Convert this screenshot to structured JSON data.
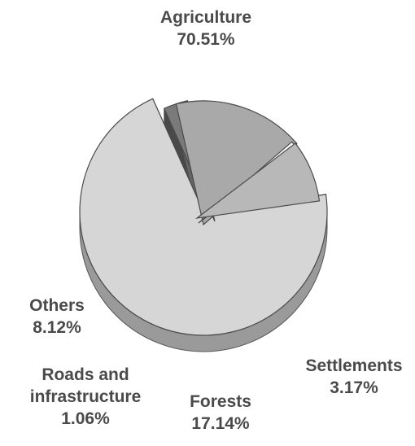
{
  "chart_data": {
    "type": "pie",
    "style": "3d-exploded",
    "categories": [
      "Agriculture",
      "Settlements",
      "Forests",
      "Roads and infrastructure",
      "Others"
    ],
    "values": [
      70.51,
      3.17,
      17.14,
      1.06,
      8.12
    ],
    "value_labels": [
      "70.51%",
      "3.17%",
      "17.14%",
      "1.06%",
      "8.12%"
    ],
    "colors": {
      "Agriculture": "#d6d6d6",
      "Settlements": "#7a7a7a",
      "Forests": "#a9a9a9",
      "Roads and infrastructure": "#f4f4f4",
      "Others": "#b8b8b8"
    },
    "label_lines": {
      "Roads and infrastructure": [
        "Roads and",
        "infrastructure"
      ]
    },
    "legend": "none",
    "title": ""
  }
}
